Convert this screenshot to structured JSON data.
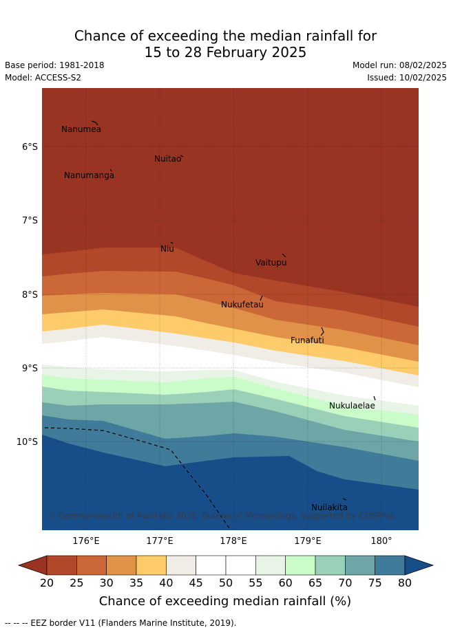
{
  "title": {
    "line1": "Chance of exceeding the median rainfall for",
    "line2": "15 to 28 February 2025"
  },
  "meta": {
    "base_period": "Base period: 1981-2018",
    "model": "Model: ACCESS-S2",
    "model_run": "Model run: 08/02/2025",
    "issued": "Issued: 10/02/2025"
  },
  "map": {
    "lat_labels": [
      "6°S",
      "7°S",
      "8°S",
      "9°S",
      "10°S"
    ],
    "lon_labels": [
      "176°E",
      "177°E",
      "178°E",
      "179°E",
      "180°"
    ],
    "islands": [
      "Nanumea",
      "Nuitao",
      "Nanumanga",
      "Niu",
      "Vaitupu",
      "Nukufetau",
      "Funafuti",
      "Nukulaelae",
      "Nuilakita"
    ],
    "copyright": "© Commonwealth of Australia 2025, Bureau of Meteorology, supported by COSPPac"
  },
  "colorbar": {
    "ticks": [
      "20",
      "25",
      "30",
      "35",
      "40",
      "45",
      "50",
      "55",
      "60",
      "65",
      "70",
      "75",
      "80"
    ],
    "colors": [
      "#983421",
      "#b2472a",
      "#cc6837",
      "#e09348",
      "#fdcb69",
      "#f0ece6",
      "#ffffff",
      "#ffffff",
      "#e8f5e6",
      "#c9fcc9",
      "#9ad0b8",
      "#6ea5a7",
      "#417b9a",
      "#174e8a"
    ],
    "label": "Chance of exceeding median rainfall (%)"
  },
  "footnote": "-- -- -- EEZ border V11 (Flanders Marine Institute, 2019)."
}
